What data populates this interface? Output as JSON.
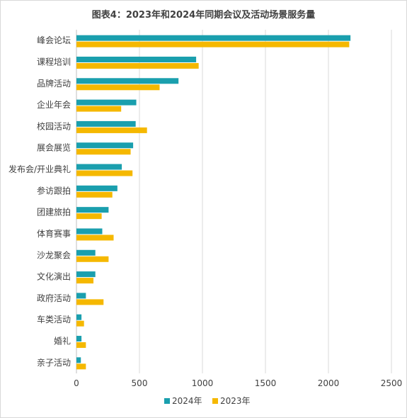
{
  "chart_data": {
    "type": "bar",
    "orientation": "horizontal",
    "title": "图表4：2023年和2024年同期会议及活动场景服务量",
    "categories": [
      "峰会论坛",
      "课程培训",
      "品牌活动",
      "企业年会",
      "校园活动",
      "展会展览",
      "发布会/开业典礼",
      "参访跟拍",
      "团建旅拍",
      "体育赛事",
      "沙龙聚会",
      "文化演出",
      "政府活动",
      "车类活动",
      "婚礼",
      "亲子活动"
    ],
    "series": [
      {
        "name": "2024年",
        "color": "#1a9fae",
        "values": [
          2175,
          950,
          810,
          475,
          470,
          450,
          360,
          325,
          255,
          205,
          150,
          150,
          75,
          40,
          40,
          35
        ]
      },
      {
        "name": "2023年",
        "color": "#f5b800",
        "values": [
          2165,
          970,
          660,
          355,
          560,
          430,
          445,
          285,
          200,
          295,
          255,
          135,
          215,
          60,
          75,
          75
        ]
      }
    ],
    "xlim": [
      0,
      2500
    ],
    "xticks": [
      "0",
      "500",
      "1000",
      "1500",
      "2000",
      "2500"
    ],
    "grid": true,
    "legend_position": "bottom"
  }
}
